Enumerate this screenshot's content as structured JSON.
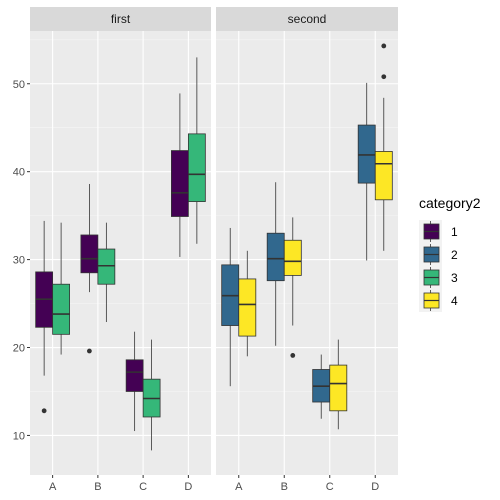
{
  "chart_data": {
    "type": "boxplot",
    "categories": [
      "A",
      "B",
      "C",
      "D"
    ],
    "ylim": [
      5.5,
      56
    ],
    "yticks": [
      10,
      20,
      30,
      40,
      50
    ],
    "grid": true,
    "legend": {
      "title": "category2",
      "position": "right",
      "entries": [
        {
          "key": "1",
          "color": "#440154"
        },
        {
          "key": "2",
          "color": "#31688E"
        },
        {
          "key": "3",
          "color": "#35B779"
        },
        {
          "key": "4",
          "color": "#FDE725"
        }
      ]
    },
    "facets": [
      {
        "title": "first",
        "groups": [
          {
            "category": "A",
            "series": "1",
            "min": 16.8,
            "q1": 22.3,
            "median": 25.5,
            "q3": 28.6,
            "max": 34.4,
            "outliers": [
              12.8
            ]
          },
          {
            "category": "A",
            "series": "3",
            "min": 19.2,
            "q1": 21.5,
            "median": 23.8,
            "q3": 27.2,
            "max": 34.2,
            "outliers": []
          },
          {
            "category": "B",
            "series": "1",
            "min": 26.3,
            "q1": 28.5,
            "median": 30.1,
            "q3": 32.8,
            "max": 38.6,
            "outliers": [
              19.6
            ]
          },
          {
            "category": "B",
            "series": "3",
            "min": 22.9,
            "q1": 27.2,
            "median": 29.3,
            "q3": 31.2,
            "max": 34.2,
            "outliers": []
          },
          {
            "category": "C",
            "series": "1",
            "min": 10.5,
            "q1": 15.0,
            "median": 17.2,
            "q3": 18.6,
            "max": 21.8,
            "outliers": []
          },
          {
            "category": "C",
            "series": "3",
            "min": 8.3,
            "q1": 12.1,
            "median": 14.2,
            "q3": 16.4,
            "max": 20.9,
            "outliers": []
          },
          {
            "category": "D",
            "series": "1",
            "min": 30.3,
            "q1": 34.9,
            "median": 37.6,
            "q3": 42.4,
            "max": 48.9,
            "outliers": []
          },
          {
            "category": "D",
            "series": "3",
            "min": 31.8,
            "q1": 36.6,
            "median": 39.7,
            "q3": 44.3,
            "max": 53.0,
            "outliers": []
          }
        ]
      },
      {
        "title": "second",
        "groups": [
          {
            "category": "A",
            "series": "2",
            "min": 15.6,
            "q1": 22.5,
            "median": 25.9,
            "q3": 29.4,
            "max": 33.6,
            "outliers": []
          },
          {
            "category": "A",
            "series": "4",
            "min": 19.0,
            "q1": 21.3,
            "median": 24.9,
            "q3": 27.8,
            "max": 31.0,
            "outliers": []
          },
          {
            "category": "B",
            "series": "2",
            "min": 20.2,
            "q1": 27.6,
            "median": 30.1,
            "q3": 33.0,
            "max": 38.8,
            "outliers": []
          },
          {
            "category": "B",
            "series": "4",
            "min": 22.5,
            "q1": 28.2,
            "median": 29.8,
            "q3": 32.2,
            "max": 34.8,
            "outliers": [
              19.1
            ]
          },
          {
            "category": "C",
            "series": "2",
            "min": 11.9,
            "q1": 13.8,
            "median": 15.6,
            "q3": 17.5,
            "max": 19.2,
            "outliers": []
          },
          {
            "category": "C",
            "series": "4",
            "min": 10.7,
            "q1": 12.8,
            "median": 15.9,
            "q3": 18.0,
            "max": 20.9,
            "outliers": []
          },
          {
            "category": "D",
            "series": "2",
            "min": 29.9,
            "q1": 38.7,
            "median": 41.9,
            "q3": 45.3,
            "max": 50.1,
            "outliers": []
          },
          {
            "category": "D",
            "series": "4",
            "min": 31.0,
            "q1": 36.8,
            "median": 40.9,
            "q3": 42.3,
            "max": 48.4,
            "outliers": [
              50.8,
              54.3
            ]
          }
        ]
      }
    ]
  }
}
